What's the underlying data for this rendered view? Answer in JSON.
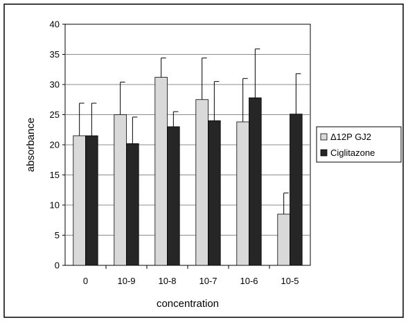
{
  "chart_data": {
    "type": "bar",
    "title": "",
    "xlabel": "concentration",
    "ylabel": "absorbance",
    "categories": [
      "0",
      "10-9",
      "10-8",
      "10-7",
      "10-6",
      "10-5"
    ],
    "ylim": [
      0,
      40
    ],
    "yticks": [
      0,
      5,
      10,
      15,
      20,
      25,
      30,
      35,
      40
    ],
    "grid": true,
    "legend_position": "right",
    "series": [
      {
        "name": "Δ12P GJ2",
        "color": "#d9d9d9",
        "values": [
          21.5,
          25.0,
          31.2,
          27.5,
          23.8,
          8.5
        ],
        "errors": [
          5.4,
          5.4,
          3.2,
          6.9,
          7.2,
          3.5
        ]
      },
      {
        "name": "Ciglitazone",
        "color": "#262626",
        "values": [
          21.5,
          20.2,
          23.0,
          24.0,
          27.8,
          25.1
        ],
        "errors": [
          5.4,
          4.4,
          2.5,
          6.5,
          8.1,
          6.7
        ]
      }
    ]
  }
}
